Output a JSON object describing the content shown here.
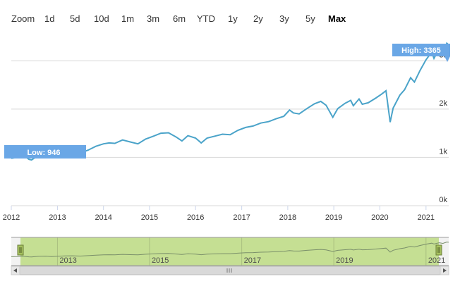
{
  "toolbar": {
    "zoom_label": "Zoom",
    "buttons": [
      {
        "label": "1d"
      },
      {
        "label": "5d"
      },
      {
        "label": "10d"
      },
      {
        "label": "1m"
      },
      {
        "label": "3m"
      },
      {
        "label": "6m"
      },
      {
        "label": "YTD"
      },
      {
        "label": "1y"
      },
      {
        "label": "2y"
      },
      {
        "label": "3y"
      },
      {
        "label": "5y"
      },
      {
        "label": "Max"
      }
    ],
    "active": "Max"
  },
  "colors": {
    "line": "#4aa3c9",
    "flag": "#6aa7e6",
    "grid": "#d8d8d8",
    "navigator_fill": "#c5df93",
    "navigator_line": "#7a8f6a",
    "scrollbar": "#d9d9d9"
  },
  "chart_data": {
    "type": "line",
    "xlim": [
      "2012-01-01",
      "2021-06-30"
    ],
    "ylim": [
      0,
      3500
    ],
    "y_ticks": [
      {
        "value": 0,
        "label": "0k"
      },
      {
        "value": 1000,
        "label": "1k"
      },
      {
        "value": 2000,
        "label": "2k"
      },
      {
        "value": 3000,
        "label": "3k"
      }
    ],
    "x_ticks": [
      {
        "date": "2012-01-01",
        "label": "2012"
      },
      {
        "date": "2013-01-01",
        "label": "2013"
      },
      {
        "date": "2014-01-01",
        "label": "2014"
      },
      {
        "date": "2015-01-01",
        "label": "2015"
      },
      {
        "date": "2016-01-01",
        "label": "2016"
      },
      {
        "date": "2017-01-01",
        "label": "2017"
      },
      {
        "date": "2018-01-01",
        "label": "2018"
      },
      {
        "date": "2019-01-01",
        "label": "2019"
      },
      {
        "date": "2020-01-01",
        "label": "2020"
      },
      {
        "date": "2021-01-01",
        "label": "2021"
      }
    ],
    "navigator_ticks": [
      {
        "date": "2013-01-01",
        "label": "2013"
      },
      {
        "date": "2015-01-01",
        "label": "2015"
      },
      {
        "date": "2017-01-01",
        "label": "2017"
      },
      {
        "date": "2019-01-01",
        "label": "2019"
      },
      {
        "date": "2021-01-01",
        "label": "2021"
      }
    ],
    "points": [
      [
        "2012-01-01",
        980
      ],
      [
        "2012-02-15",
        1000
      ],
      [
        "2012-04-01",
        1060
      ],
      [
        "2012-05-20",
        960
      ],
      [
        "2012-06-10",
        946
      ],
      [
        "2012-08-01",
        1040
      ],
      [
        "2012-10-01",
        1080
      ],
      [
        "2012-11-15",
        1010
      ],
      [
        "2013-01-01",
        1060
      ],
      [
        "2013-03-01",
        1110
      ],
      [
        "2013-05-01",
        1130
      ],
      [
        "2013-07-01",
        1090
      ],
      [
        "2013-09-01",
        1150
      ],
      [
        "2013-11-01",
        1230
      ],
      [
        "2014-01-01",
        1280
      ],
      [
        "2014-02-15",
        1300
      ],
      [
        "2014-04-01",
        1290
      ],
      [
        "2014-06-01",
        1360
      ],
      [
        "2014-08-01",
        1320
      ],
      [
        "2014-10-01",
        1280
      ],
      [
        "2014-12-01",
        1380
      ],
      [
        "2015-02-01",
        1440
      ],
      [
        "2015-04-01",
        1500
      ],
      [
        "2015-06-01",
        1510
      ],
      [
        "2015-08-01",
        1420
      ],
      [
        "2015-09-15",
        1340
      ],
      [
        "2015-11-01",
        1450
      ],
      [
        "2016-01-01",
        1400
      ],
      [
        "2016-02-15",
        1300
      ],
      [
        "2016-04-01",
        1400
      ],
      [
        "2016-06-01",
        1440
      ],
      [
        "2016-08-01",
        1480
      ],
      [
        "2016-10-01",
        1470
      ],
      [
        "2016-12-01",
        1560
      ],
      [
        "2017-02-01",
        1620
      ],
      [
        "2017-04-01",
        1650
      ],
      [
        "2017-06-01",
        1710
      ],
      [
        "2017-08-01",
        1740
      ],
      [
        "2017-10-01",
        1800
      ],
      [
        "2017-12-01",
        1850
      ],
      [
        "2018-01-15",
        1980
      ],
      [
        "2018-02-15",
        1920
      ],
      [
        "2018-04-01",
        1900
      ],
      [
        "2018-06-01",
        2010
      ],
      [
        "2018-08-01",
        2110
      ],
      [
        "2018-09-20",
        2160
      ],
      [
        "2018-11-01",
        2080
      ],
      [
        "2018-12-24",
        1830
      ],
      [
        "2019-02-01",
        2010
      ],
      [
        "2019-04-01",
        2120
      ],
      [
        "2019-05-15",
        2180
      ],
      [
        "2019-06-05",
        2070
      ],
      [
        "2019-07-20",
        2210
      ],
      [
        "2019-08-15",
        2100
      ],
      [
        "2019-10-01",
        2130
      ],
      [
        "2019-12-01",
        2230
      ],
      [
        "2020-01-15",
        2310
      ],
      [
        "2020-02-19",
        2380
      ],
      [
        "2020-03-23",
        1730
      ],
      [
        "2020-04-15",
        2020
      ],
      [
        "2020-06-08",
        2290
      ],
      [
        "2020-07-15",
        2400
      ],
      [
        "2020-09-01",
        2650
      ],
      [
        "2020-10-01",
        2560
      ],
      [
        "2020-11-15",
        2800
      ],
      [
        "2021-01-01",
        3020
      ],
      [
        "2021-02-15",
        3180
      ],
      [
        "2021-03-05",
        3050
      ],
      [
        "2021-04-15",
        3250
      ],
      [
        "2021-05-15",
        3150
      ],
      [
        "2021-06-15",
        3365
      ],
      [
        "2021-06-30",
        3330
      ]
    ],
    "flags": {
      "high": {
        "label": "High: 3365",
        "value": 3365
      },
      "low": {
        "label": "Low: 946",
        "value": 946
      }
    }
  }
}
